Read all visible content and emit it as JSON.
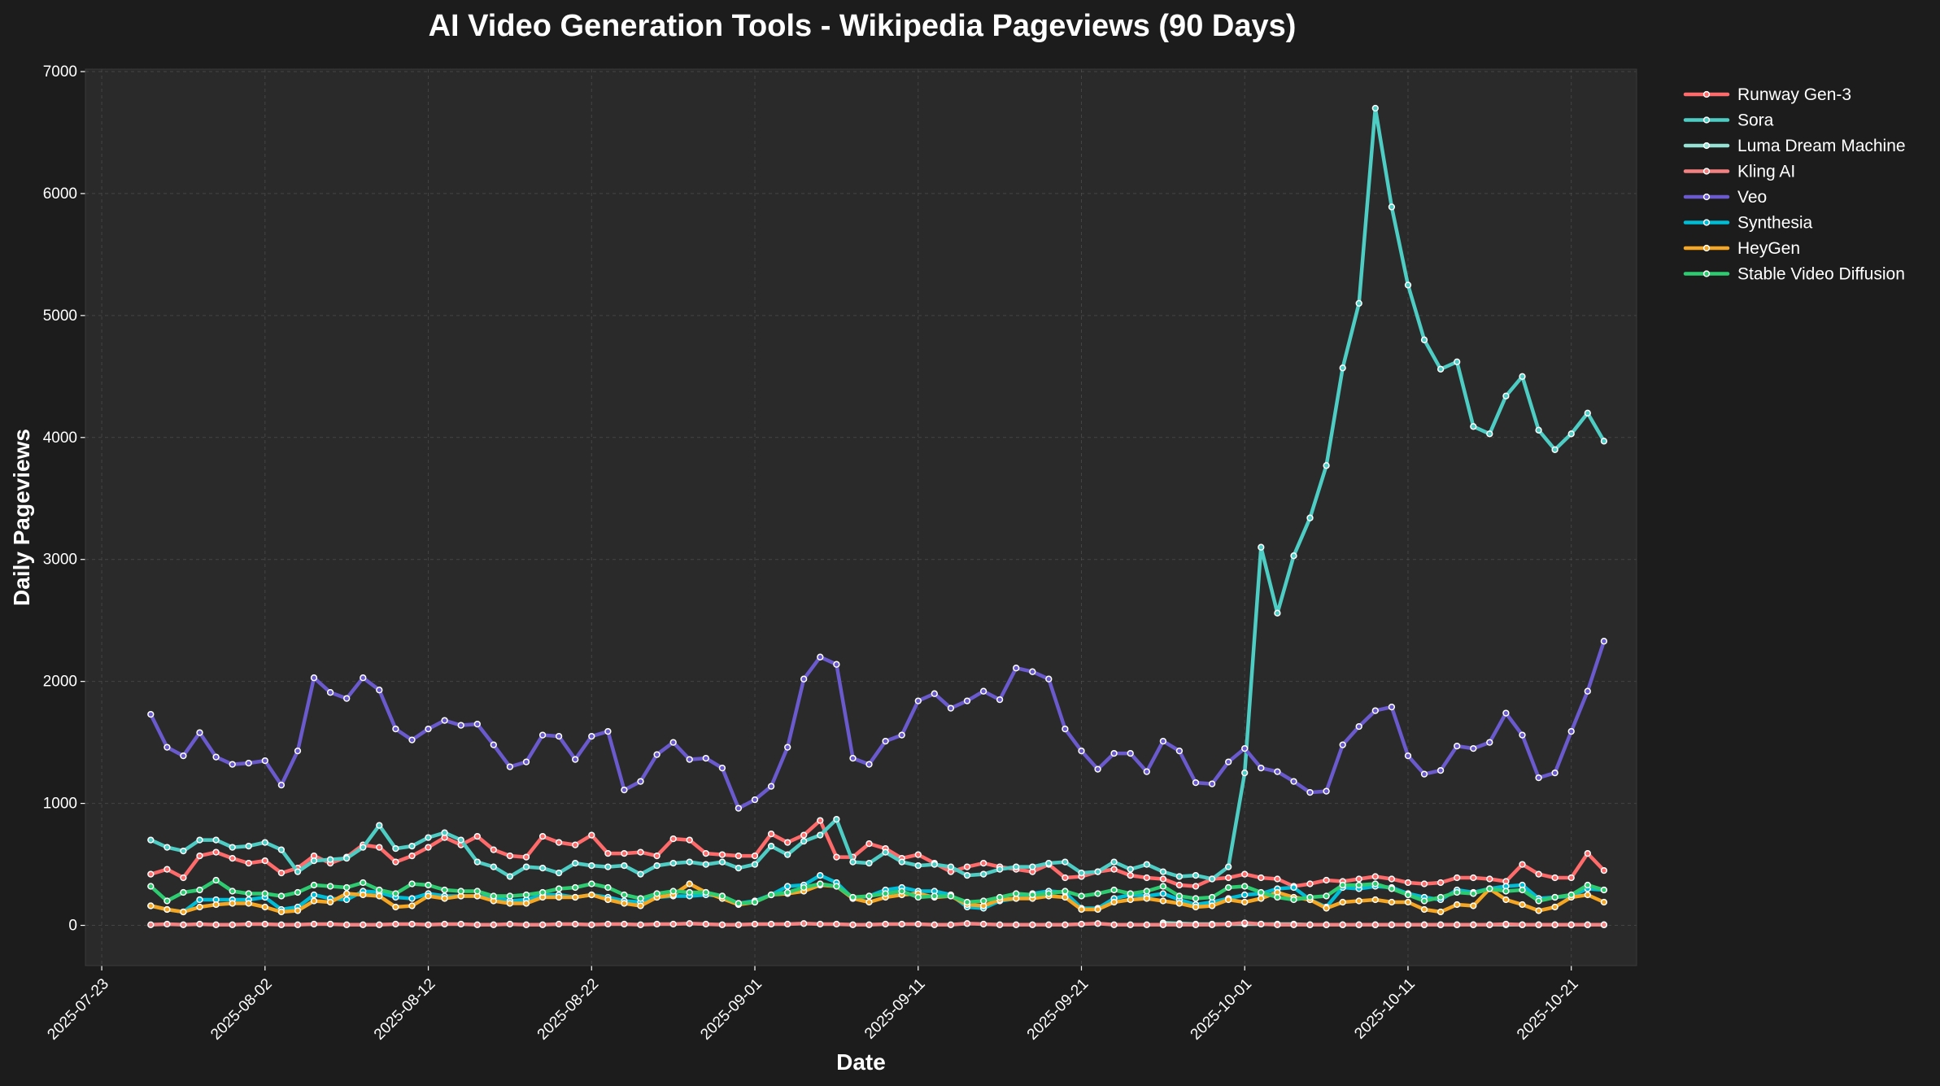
{
  "chart_data": {
    "type": "line",
    "title": "AI Video Generation Tools - Wikipedia Pageviews (90 Days)",
    "xlabel": "Date",
    "ylabel": "Daily Pageviews",
    "start_date": "2025-07-26",
    "xlim": [
      "2025-07-22",
      "2025-10-25"
    ],
    "ylim": [
      -330,
      7020
    ],
    "x_ticks": [
      "2025-07-23",
      "2025-08-02",
      "2025-08-12",
      "2025-08-22",
      "2025-09-01",
      "2025-09-11",
      "2025-09-21",
      "2025-10-01",
      "2025-10-11",
      "2025-10-21"
    ],
    "y_ticks": [
      0,
      1000,
      2000,
      3000,
      4000,
      5000,
      6000,
      7000
    ],
    "grid": true,
    "legend_position": "outside-top-right",
    "series": [
      {
        "name": "Runway Gen-3",
        "color": "#ff6b6b",
        "values": [
          420,
          460,
          390,
          570,
          600,
          550,
          510,
          530,
          430,
          470,
          570,
          510,
          560,
          660,
          640,
          520,
          570,
          640,
          720,
          660,
          730,
          620,
          570,
          560,
          730,
          680,
          660,
          740,
          590,
          590,
          600,
          570,
          710,
          700,
          590,
          580,
          570,
          570,
          750,
          680,
          740,
          860,
          560,
          560,
          670,
          630,
          550,
          580,
          510,
          440,
          480,
          510,
          480,
          460,
          440,
          500,
          390,
          400,
          440,
          460,
          410,
          390,
          380,
          330,
          320,
          380,
          390,
          420,
          390,
          380,
          320,
          340,
          370,
          360,
          380,
          400,
          380,
          350,
          340,
          350,
          390,
          390,
          380,
          360,
          500,
          420,
          390,
          390,
          590,
          450
        ]
      },
      {
        "name": "Sora",
        "color": "#4ecdc4",
        "values": [
          700,
          640,
          610,
          700,
          700,
          640,
          650,
          680,
          620,
          440,
          530,
          540,
          550,
          640,
          820,
          630,
          650,
          720,
          760,
          700,
          520,
          480,
          400,
          480,
          470,
          430,
          510,
          490,
          480,
          490,
          420,
          490,
          510,
          520,
          500,
          520,
          470,
          500,
          650,
          580,
          690,
          740,
          870,
          520,
          510,
          600,
          520,
          490,
          500,
          480,
          410,
          420,
          460,
          480,
          480,
          510,
          520,
          430,
          440,
          520,
          460,
          500,
          440,
          400,
          410,
          380,
          480,
          1250,
          3100,
          2560,
          3030,
          3340,
          3770,
          4570,
          5100,
          6700,
          5890,
          5250,
          4800,
          4560,
          4620,
          4090,
          4030,
          4340,
          4500,
          4060,
          3900,
          4030,
          4200,
          3970
        ]
      },
      {
        "name": "Luma Dream Machine",
        "color": "#95e1d3",
        "values": [
          null,
          null,
          null,
          null,
          null,
          null,
          null,
          null,
          null,
          null,
          null,
          null,
          null,
          null,
          null,
          null,
          null,
          null,
          null,
          null,
          null,
          null,
          null,
          null,
          null,
          null,
          null,
          null,
          null,
          null,
          null,
          null,
          null,
          null,
          null,
          null,
          null,
          null,
          null,
          null,
          null,
          null,
          null,
          null,
          null,
          null,
          null,
          null,
          null,
          null,
          null,
          null,
          null,
          null,
          null,
          null,
          null,
          null,
          null,
          null,
          null,
          null,
          20,
          15,
          10,
          10,
          10,
          10,
          10,
          10,
          10,
          5,
          5,
          5,
          5,
          5,
          5,
          5,
          5,
          5,
          5,
          5,
          5,
          5,
          5,
          5,
          5,
          5,
          5,
          5
        ]
      },
      {
        "name": "Kling AI",
        "color": "#f38181",
        "values": [
          5,
          10,
          5,
          10,
          5,
          5,
          10,
          10,
          5,
          5,
          10,
          10,
          5,
          5,
          5,
          10,
          10,
          5,
          10,
          10,
          5,
          5,
          10,
          5,
          5,
          10,
          10,
          5,
          10,
          10,
          5,
          10,
          10,
          15,
          10,
          5,
          5,
          10,
          10,
          10,
          15,
          10,
          10,
          5,
          5,
          10,
          10,
          10,
          5,
          5,
          15,
          10,
          5,
          5,
          5,
          5,
          5,
          10,
          15,
          5,
          5,
          5,
          5,
          5,
          5,
          5,
          10,
          20,
          10,
          5,
          5,
          5,
          5,
          5,
          5,
          5,
          5,
          5,
          5,
          5,
          5,
          5,
          5,
          10,
          5,
          5,
          5,
          5,
          5,
          5
        ]
      },
      {
        "name": "Veo",
        "color": "#6a5acd",
        "values": [
          1730,
          1460,
          1390,
          1580,
          1380,
          1320,
          1330,
          1350,
          1150,
          1430,
          2030,
          1910,
          1860,
          2030,
          1930,
          1610,
          1520,
          1610,
          1680,
          1640,
          1650,
          1480,
          1300,
          1340,
          1560,
          1550,
          1360,
          1550,
          1590,
          1110,
          1180,
          1400,
          1500,
          1360,
          1370,
          1290,
          960,
          1030,
          1140,
          1460,
          2020,
          2200,
          2140,
          1370,
          1320,
          1510,
          1560,
          1840,
          1900,
          1780,
          1840,
          1920,
          1850,
          2110,
          2080,
          2020,
          1610,
          1430,
          1280,
          1410,
          1410,
          1260,
          1510,
          1430,
          1170,
          1160,
          1340,
          1450,
          1290,
          1260,
          1180,
          1090,
          1100,
          1480,
          1630,
          1760,
          1790,
          1390,
          1240,
          1270,
          1470,
          1450,
          1500,
          1740,
          1560,
          1210,
          1250,
          1590,
          1920,
          2330
        ]
      },
      {
        "name": "Synthesia",
        "color": "#00bcd4",
        "values": [
          160,
          130,
          110,
          210,
          210,
          210,
          210,
          230,
          130,
          150,
          250,
          220,
          210,
          280,
          270,
          230,
          220,
          260,
          240,
          240,
          240,
          230,
          200,
          210,
          250,
          250,
          230,
          250,
          230,
          200,
          190,
          230,
          240,
          240,
          250,
          240,
          180,
          200,
          250,
          320,
          330,
          410,
          350,
          220,
          240,
          290,
          310,
          280,
          280,
          250,
          150,
          140,
          200,
          220,
          260,
          280,
          270,
          140,
          140,
          220,
          250,
          240,
          260,
          210,
          170,
          190,
          220,
          250,
          260,
          300,
          310,
          210,
          150,
          310,
          300,
          320,
          310,
          260,
          230,
          210,
          290,
          270,
          300,
          320,
          330,
          220,
          230,
          240,
          300,
          290
        ]
      },
      {
        "name": "HeyGen",
        "color": "#f5a623",
        "values": [
          160,
          130,
          110,
          150,
          170,
          180,
          180,
          150,
          110,
          120,
          200,
          190,
          260,
          250,
          240,
          150,
          160,
          240,
          220,
          240,
          240,
          200,
          180,
          180,
          230,
          230,
          230,
          250,
          210,
          180,
          160,
          230,
          250,
          340,
          270,
          220,
          170,
          190,
          250,
          260,
          280,
          330,
          320,
          220,
          190,
          230,
          250,
          260,
          230,
          240,
          170,
          160,
          210,
          220,
          220,
          240,
          230,
          130,
          130,
          190,
          210,
          220,
          200,
          180,
          150,
          160,
          210,
          190,
          220,
          270,
          230,
          210,
          140,
          190,
          200,
          210,
          190,
          190,
          130,
          110,
          170,
          160,
          300,
          210,
          170,
          120,
          150,
          230,
          250,
          190
        ]
      },
      {
        "name": "Stable Video Diffusion",
        "color": "#2ecc71",
        "values": [
          320,
          200,
          270,
          290,
          370,
          280,
          260,
          260,
          240,
          270,
          330,
          320,
          310,
          350,
          290,
          260,
          340,
          330,
          290,
          280,
          280,
          240,
          240,
          250,
          270,
          300,
          310,
          340,
          310,
          250,
          220,
          260,
          280,
          270,
          270,
          240,
          180,
          190,
          250,
          270,
          310,
          340,
          320,
          230,
          240,
          260,
          280,
          230,
          240,
          240,
          190,
          200,
          230,
          260,
          250,
          260,
          280,
          240,
          260,
          290,
          260,
          280,
          320,
          240,
          220,
          230,
          310,
          320,
          270,
          230,
          210,
          230,
          240,
          330,
          330,
          340,
          300,
          250,
          200,
          230,
          270,
          260,
          300,
          280,
          290,
          200,
          230,
          250,
          330,
          290
        ]
      }
    ]
  }
}
